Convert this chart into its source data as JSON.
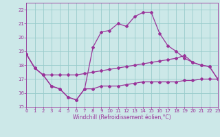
{
  "xlabel": "Windchill (Refroidissement éolien,°C)",
  "xlim": [
    0,
    23
  ],
  "ylim": [
    15,
    22.5
  ],
  "yticks": [
    15,
    16,
    17,
    18,
    19,
    20,
    21,
    22
  ],
  "xticks": [
    0,
    1,
    2,
    3,
    4,
    5,
    6,
    7,
    8,
    9,
    10,
    11,
    12,
    13,
    14,
    15,
    16,
    17,
    18,
    19,
    20,
    21,
    22,
    23
  ],
  "bg_color": "#cce8e8",
  "grid_color": "#99cccc",
  "line_color": "#993399",
  "line1_x": [
    0,
    1,
    2,
    3,
    4,
    5,
    6,
    7,
    8,
    9,
    10,
    11,
    12,
    13,
    14,
    15,
    16,
    17,
    18,
    19,
    20,
    21,
    22,
    23
  ],
  "line1_y": [
    18.8,
    17.8,
    17.3,
    16.5,
    16.3,
    15.7,
    15.5,
    16.3,
    19.3,
    20.4,
    20.5,
    21.0,
    20.8,
    21.5,
    21.8,
    21.8,
    20.3,
    19.4,
    19.0,
    18.5,
    18.2,
    18.0,
    17.9,
    17.0
  ],
  "line2_x": [
    0,
    1,
    2,
    3,
    4,
    5,
    6,
    7,
    8,
    9,
    10,
    11,
    12,
    13,
    14,
    15,
    16,
    17,
    18,
    19,
    20,
    21,
    22,
    23
  ],
  "line2_y": [
    18.8,
    17.8,
    17.3,
    16.5,
    16.3,
    15.7,
    15.5,
    16.3,
    16.3,
    16.5,
    16.5,
    16.5,
    16.6,
    16.7,
    16.8,
    16.8,
    16.8,
    16.8,
    16.8,
    16.9,
    16.9,
    17.0,
    17.0,
    17.0
  ],
  "line3_x": [
    0,
    1,
    2,
    3,
    4,
    5,
    6,
    7,
    8,
    9,
    10,
    11,
    12,
    13,
    14,
    15,
    16,
    17,
    18,
    19,
    20,
    21,
    22,
    23
  ],
  "line3_y": [
    18.8,
    17.8,
    17.3,
    17.3,
    17.3,
    17.3,
    17.3,
    17.4,
    17.5,
    17.6,
    17.7,
    17.8,
    17.9,
    18.0,
    18.1,
    18.2,
    18.3,
    18.4,
    18.5,
    18.7,
    18.2,
    18.0,
    17.9,
    17.0
  ],
  "tick_fontsize": 5.0,
  "xlabel_fontsize": 5.5,
  "marker_size": 2.0,
  "linewidth": 0.9
}
